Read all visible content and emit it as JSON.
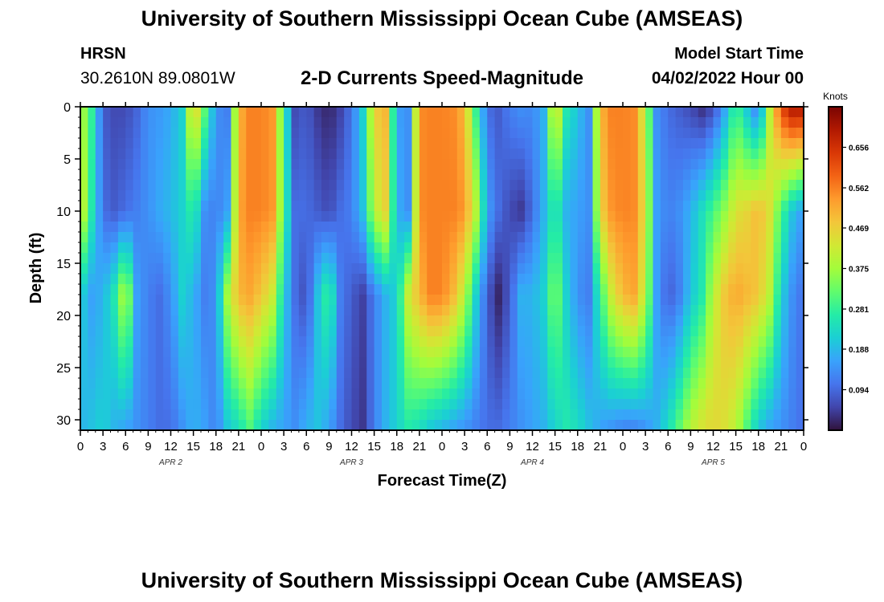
{
  "header": {
    "title": "University of Southern Mississippi Ocean Cube (AMSEAS)",
    "station_name": "HRSN",
    "station_coords": "30.2610N  89.0801W",
    "plot_title": "2-D Currents Speed-Magnitude",
    "model_start_label": "Model Start Time",
    "model_start_value": "04/02/2022 Hour 00"
  },
  "footer": {
    "title": "University of Southern Mississippi Ocean Cube (AMSEAS)"
  },
  "chart_data": {
    "type": "heatmap",
    "title": "2-D Currents Speed-Magnitude",
    "xlabel": "Forecast Time(Z)",
    "ylabel": "Depth (ft)",
    "colorbar_label": "Knots",
    "x_range_hours": [
      0,
      96
    ],
    "y_range_ft": [
      0,
      31
    ],
    "y_inverted": true,
    "x_tick_labels": [
      "0",
      "3",
      "6",
      "9",
      "12",
      "15",
      "18",
      "21",
      "0",
      "3",
      "6",
      "9",
      "12",
      "15",
      "18",
      "21",
      "0",
      "3",
      "6",
      "9",
      "12",
      "15",
      "18",
      "21",
      "0",
      "3",
      "6",
      "9",
      "12",
      "15",
      "18",
      "21",
      "0"
    ],
    "y_ticks": [
      0,
      5,
      10,
      15,
      20,
      25,
      30
    ],
    "day_labels": [
      {
        "label": "APR 2",
        "hour": 12
      },
      {
        "label": "APR 3",
        "hour": 36
      },
      {
        "label": "APR 4",
        "hour": 60
      },
      {
        "label": "APR 5",
        "hour": 84
      }
    ],
    "colorbar_range": [
      0,
      0.75
    ],
    "colorbar_ticks": [
      0.094,
      0.188,
      0.281,
      0.375,
      0.469,
      0.562,
      0.656
    ],
    "colorbar_tick_labels": [
      "0.094",
      "0.188",
      "0.281",
      "0.375",
      "0.469",
      "0.562",
      "0.656"
    ],
    "colorscale": [
      "#30123b",
      "#4145ab",
      "#4675ed",
      "#39a2fc",
      "#1bcfd4",
      "#24eca6",
      "#61fc6c",
      "#a4fc3b",
      "#d1e834",
      "#f3c63a",
      "#fe9b2d",
      "#f36315",
      "#d93806",
      "#b11901",
      "#7a0403"
    ],
    "depth_breaks_ft": [
      0,
      10,
      18,
      31
    ],
    "speed_hours": [
      0,
      1.5,
      3,
      4.5,
      6,
      7.5,
      9,
      10.5,
      12,
      13.5,
      15,
      16.5,
      18,
      19.5,
      21,
      22.5,
      24,
      25.5,
      27,
      28.5,
      30,
      31.5,
      33,
      34.5,
      36,
      37.5,
      39,
      40.5,
      42,
      43.5,
      45,
      46.5,
      48,
      49.5,
      51,
      52.5,
      54,
      55.5,
      57,
      58.5,
      60,
      61.5,
      63,
      64.5,
      66,
      67.5,
      69,
      70.5,
      72,
      73.5,
      75,
      76.5,
      78,
      79.5,
      81,
      82.5,
      84,
      85.5,
      87,
      88.5,
      90,
      91.5,
      93,
      94.5,
      96
    ],
    "speed_knots_by_depth": [
      [
        0.4,
        0.28,
        0.08,
        0.06,
        0.06,
        0.09,
        0.14,
        0.15,
        0.17,
        0.22,
        0.5,
        0.32,
        0.14,
        0.12,
        0.5,
        0.56,
        0.56,
        0.54,
        0.28,
        0.06,
        0.08,
        0.04,
        0.02,
        0.05,
        0.11,
        0.22,
        0.47,
        0.5,
        0.16,
        0.14,
        0.55,
        0.56,
        0.56,
        0.55,
        0.5,
        0.28,
        0.1,
        0.08,
        0.12,
        0.14,
        0.13,
        0.18,
        0.48,
        0.26,
        0.2,
        0.14,
        0.5,
        0.56,
        0.56,
        0.55,
        0.4,
        0.14,
        0.1,
        0.08,
        0.06,
        0.03,
        0.06,
        0.16,
        0.3,
        0.2,
        0.1,
        0.4,
        0.62,
        0.7,
        0.7
      ],
      [
        0.45,
        0.26,
        0.1,
        0.08,
        0.1,
        0.12,
        0.14,
        0.17,
        0.19,
        0.22,
        0.28,
        0.14,
        0.12,
        0.16,
        0.52,
        0.56,
        0.56,
        0.54,
        0.3,
        0.1,
        0.1,
        0.08,
        0.06,
        0.1,
        0.12,
        0.2,
        0.4,
        0.46,
        0.18,
        0.14,
        0.55,
        0.56,
        0.56,
        0.56,
        0.54,
        0.4,
        0.16,
        0.1,
        0.06,
        0.04,
        0.1,
        0.18,
        0.28,
        0.18,
        0.16,
        0.14,
        0.46,
        0.54,
        0.56,
        0.55,
        0.44,
        0.16,
        0.12,
        0.14,
        0.18,
        0.24,
        0.3,
        0.36,
        0.44,
        0.46,
        0.5,
        0.44,
        0.3,
        0.2,
        0.15
      ],
      [
        0.22,
        0.16,
        0.18,
        0.26,
        0.42,
        0.16,
        0.12,
        0.1,
        0.14,
        0.22,
        0.18,
        0.12,
        0.14,
        0.38,
        0.5,
        0.52,
        0.48,
        0.42,
        0.22,
        0.1,
        0.06,
        0.2,
        0.3,
        0.12,
        0.08,
        0.05,
        0.12,
        0.18,
        0.22,
        0.42,
        0.5,
        0.56,
        0.56,
        0.5,
        0.4,
        0.22,
        0.08,
        0.02,
        0.08,
        0.18,
        0.18,
        0.22,
        0.36,
        0.22,
        0.14,
        0.12,
        0.28,
        0.42,
        0.5,
        0.52,
        0.4,
        0.16,
        0.08,
        0.12,
        0.2,
        0.26,
        0.4,
        0.48,
        0.52,
        0.5,
        0.48,
        0.4,
        0.22,
        0.14,
        0.1
      ],
      [
        0.18,
        0.2,
        0.22,
        0.18,
        0.16,
        0.14,
        0.12,
        0.1,
        0.1,
        0.14,
        0.18,
        0.16,
        0.12,
        0.2,
        0.24,
        0.3,
        0.22,
        0.18,
        0.16,
        0.14,
        0.18,
        0.2,
        0.16,
        0.1,
        0.06,
        0.04,
        0.12,
        0.18,
        0.22,
        0.26,
        0.24,
        0.2,
        0.18,
        0.16,
        0.14,
        0.12,
        0.1,
        0.1,
        0.12,
        0.14,
        0.16,
        0.18,
        0.22,
        0.26,
        0.24,
        0.2,
        0.16,
        0.14,
        0.12,
        0.12,
        0.14,
        0.18,
        0.24,
        0.32,
        0.4,
        0.44,
        0.46,
        0.44,
        0.4,
        0.3,
        0.2,
        0.16,
        0.14,
        0.12,
        0.1
      ]
    ]
  }
}
